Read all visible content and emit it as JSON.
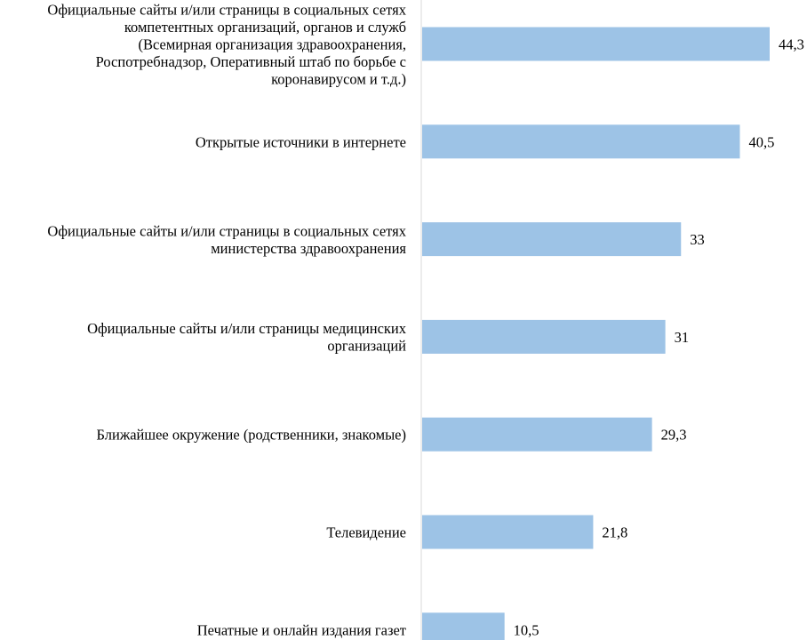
{
  "chart_data": {
    "type": "bar",
    "orientation": "horizontal",
    "categories": [
      [
        "Официальные сайты и/или страницы в социальных сетях",
        "компетентных организаций, органов и служб",
        "(Всемирная организация здравоохранения,",
        "Роспотребнадзор, Оперативный штаб по борьбе с",
        "коронавирусом и т.д.)"
      ],
      [
        "Открытые источники в интернете"
      ],
      [
        "Официальные сайты и/или страницы в социальных сетях",
        "министерства здравоохранения"
      ],
      [
        "Официальные сайты и/или страницы медицинских",
        "организаций"
      ],
      [
        "Ближайшее окружение (родственники, знакомые)"
      ],
      [
        "Телевидение"
      ],
      [
        "Печатные и онлайн издания газет"
      ]
    ],
    "values": [
      44.3,
      40.5,
      33,
      31,
      29.3,
      21.8,
      10.5
    ],
    "value_labels": [
      "44,3",
      "40,5",
      "33",
      "31",
      "29,3",
      "21,8",
      "10,5"
    ],
    "title": "",
    "xlabel": "",
    "ylabel": "",
    "xlim": [
      0,
      50
    ],
    "grid": false,
    "legend": "none",
    "bar_color": "#9dc3e6",
    "axis_color": "#d9d9d9"
  }
}
